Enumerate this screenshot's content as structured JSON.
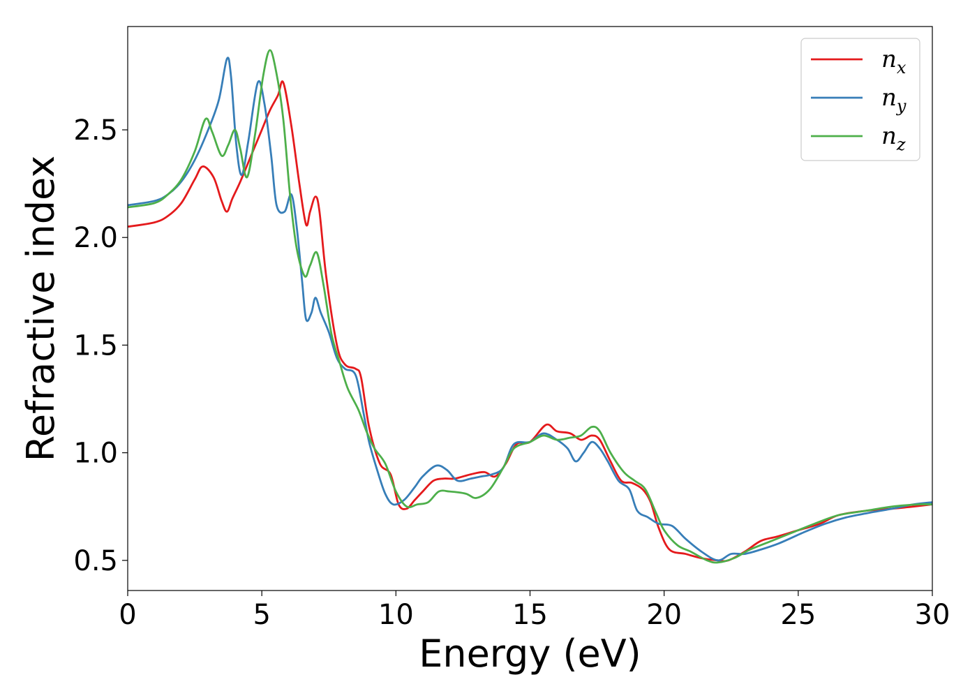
{
  "chart_data": {
    "type": "line",
    "xlabel": "Energy (eV)",
    "ylabel": "Refractive index",
    "xlim": [
      0,
      30
    ],
    "ylim": [
      0.36,
      2.98
    ],
    "xticks": [
      0,
      5,
      10,
      15,
      20,
      25,
      30
    ],
    "xtick_labels": [
      "0",
      "5",
      "10",
      "15",
      "20",
      "25",
      "30"
    ],
    "yticks": [
      0.5,
      1.0,
      1.5,
      2.0,
      2.5
    ],
    "ytick_labels": [
      "0.5",
      "1.0",
      "1.5",
      "2.0",
      "2.5"
    ],
    "grid": false,
    "legend_position": "top-right",
    "series": [
      {
        "name": "n",
        "subscript": "x",
        "color": "#e41a1c",
        "x": [
          0,
          1,
          1.5,
          2,
          2.5,
          2.8,
          3.2,
          3.5,
          3.7,
          3.9,
          4.2,
          4.6,
          5,
          5.3,
          5.6,
          5.8,
          6.1,
          6.4,
          6.65,
          6.8,
          7.0,
          7.15,
          7.4,
          7.8,
          8.1,
          8.5,
          8.7,
          9.0,
          9.4,
          9.8,
          10.1,
          10.4,
          10.7,
          11.0,
          11.4,
          11.8,
          12.2,
          12.8,
          13.3,
          13.7,
          14.1,
          14.5,
          15.0,
          15.6,
          16.0,
          16.5,
          16.9,
          17.3,
          17.6,
          18.0,
          18.4,
          18.8,
          19.2,
          19.5,
          19.8,
          20.2,
          20.8,
          21.4,
          22.0,
          22.4,
          23.0,
          23.6,
          24.2,
          25.0,
          25.8,
          26.5,
          27.5,
          28.5,
          29.3,
          30
        ],
        "y": [
          2.05,
          2.07,
          2.1,
          2.16,
          2.27,
          2.33,
          2.28,
          2.17,
          2.12,
          2.18,
          2.26,
          2.38,
          2.5,
          2.59,
          2.66,
          2.72,
          2.52,
          2.25,
          2.06,
          2.12,
          2.19,
          2.12,
          1.82,
          1.5,
          1.41,
          1.39,
          1.35,
          1.12,
          0.95,
          0.9,
          0.76,
          0.74,
          0.78,
          0.82,
          0.87,
          0.88,
          0.88,
          0.9,
          0.91,
          0.89,
          0.95,
          1.04,
          1.05,
          1.13,
          1.1,
          1.09,
          1.06,
          1.08,
          1.06,
          0.96,
          0.87,
          0.86,
          0.83,
          0.77,
          0.65,
          0.55,
          0.53,
          0.51,
          0.5,
          0.5,
          0.54,
          0.59,
          0.61,
          0.64,
          0.67,
          0.71,
          0.73,
          0.74,
          0.75,
          0.76
        ]
      },
      {
        "name": "n",
        "subscript": "y",
        "color": "#377eb8",
        "x": [
          0,
          1,
          1.5,
          2,
          2.5,
          3.0,
          3.4,
          3.7,
          3.85,
          4.05,
          4.25,
          4.5,
          4.85,
          5.1,
          5.35,
          5.55,
          5.85,
          6.1,
          6.3,
          6.5,
          6.65,
          6.85,
          7.0,
          7.2,
          7.5,
          7.8,
          8.1,
          8.5,
          8.8,
          9.0,
          9.3,
          9.6,
          9.9,
          10.3,
          10.7,
          11.0,
          11.5,
          11.9,
          12.3,
          12.8,
          13.2,
          13.6,
          14.0,
          14.4,
          15.0,
          15.5,
          16.0,
          16.4,
          16.7,
          17.0,
          17.3,
          17.6,
          17.9,
          18.3,
          18.7,
          19.0,
          19.4,
          19.8,
          20.3,
          20.8,
          21.4,
          22.0,
          22.5,
          23.0,
          23.6,
          24.3,
          25.2,
          26.0,
          26.8,
          27.6,
          28.5,
          29.3,
          30
        ],
        "y": [
          2.15,
          2.17,
          2.2,
          2.26,
          2.36,
          2.5,
          2.64,
          2.83,
          2.75,
          2.43,
          2.29,
          2.45,
          2.72,
          2.62,
          2.38,
          2.15,
          2.12,
          2.2,
          2.05,
          1.8,
          1.62,
          1.65,
          1.72,
          1.65,
          1.56,
          1.44,
          1.39,
          1.36,
          1.18,
          1.05,
          0.92,
          0.81,
          0.76,
          0.78,
          0.84,
          0.89,
          0.94,
          0.92,
          0.87,
          0.88,
          0.89,
          0.9,
          0.93,
          1.04,
          1.05,
          1.09,
          1.06,
          1.02,
          0.96,
          1.0,
          1.05,
          1.02,
          0.96,
          0.87,
          0.83,
          0.73,
          0.7,
          0.67,
          0.66,
          0.6,
          0.54,
          0.5,
          0.53,
          0.53,
          0.55,
          0.58,
          0.63,
          0.67,
          0.7,
          0.72,
          0.74,
          0.76,
          0.77
        ]
      },
      {
        "name": "n",
        "subscript": "z",
        "color": "#4daf4a",
        "x": [
          0,
          1,
          1.5,
          2,
          2.5,
          2.9,
          3.15,
          3.5,
          3.75,
          4.0,
          4.2,
          4.45,
          4.75,
          5.05,
          5.3,
          5.55,
          5.8,
          6.05,
          6.3,
          6.6,
          6.8,
          7.05,
          7.3,
          7.6,
          7.9,
          8.2,
          8.6,
          8.9,
          9.2,
          9.6,
          10.0,
          10.4,
          10.8,
          11.2,
          11.6,
          12.0,
          12.6,
          13.0,
          13.5,
          14.0,
          14.4,
          15.0,
          15.5,
          16.0,
          16.5,
          16.9,
          17.3,
          17.6,
          18.0,
          18.5,
          18.9,
          19.3,
          19.7,
          20.0,
          20.5,
          21.0,
          21.6,
          22.0,
          22.6,
          23.2,
          24.0,
          24.8,
          25.6,
          26.5,
          27.5,
          28.5,
          29.5,
          30
        ],
        "y": [
          2.14,
          2.16,
          2.2,
          2.27,
          2.4,
          2.55,
          2.49,
          2.38,
          2.43,
          2.5,
          2.41,
          2.28,
          2.48,
          2.75,
          2.87,
          2.76,
          2.55,
          2.2,
          1.95,
          1.82,
          1.87,
          1.93,
          1.78,
          1.55,
          1.42,
          1.3,
          1.2,
          1.1,
          1.02,
          0.95,
          0.82,
          0.75,
          0.76,
          0.77,
          0.82,
          0.82,
          0.81,
          0.79,
          0.83,
          0.93,
          1.02,
          1.05,
          1.08,
          1.06,
          1.07,
          1.08,
          1.12,
          1.1,
          1.0,
          0.91,
          0.87,
          0.83,
          0.72,
          0.64,
          0.57,
          0.54,
          0.5,
          0.49,
          0.51,
          0.55,
          0.59,
          0.63,
          0.67,
          0.71,
          0.73,
          0.75,
          0.76,
          0.76
        ]
      }
    ]
  }
}
